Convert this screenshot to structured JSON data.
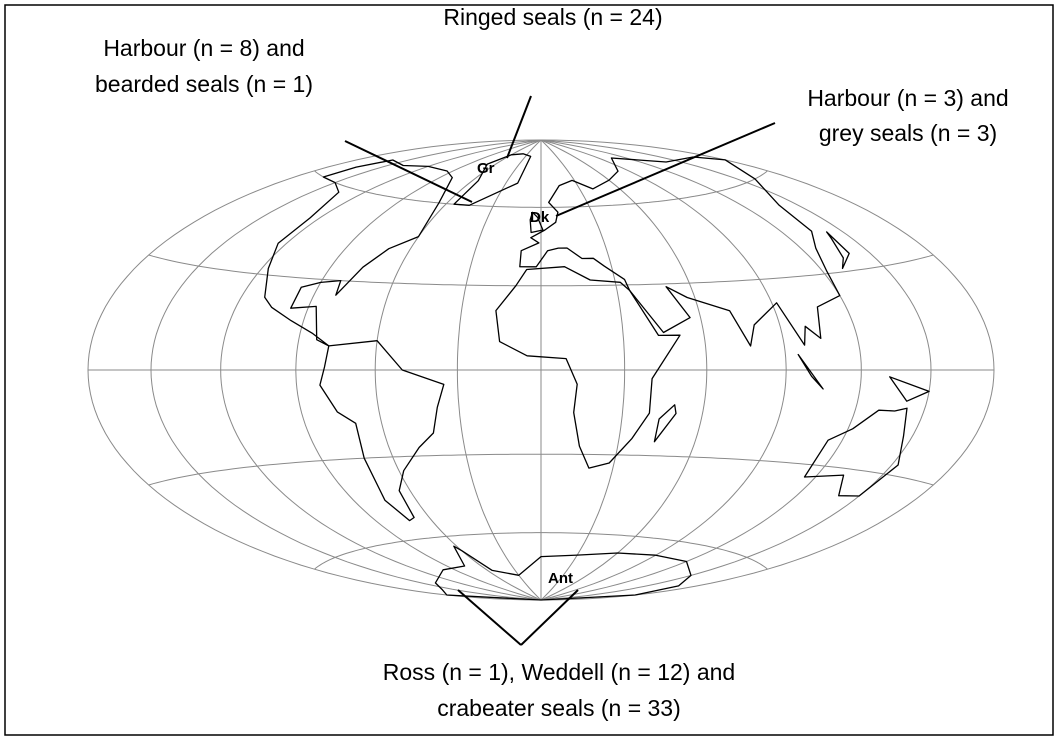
{
  "annotations": [
    {
      "lines": [
        "Harbour (n = 8) and",
        "bearded seals (n = 1)"
      ]
    },
    {
      "lines": [
        "Ringed seals (n = 24)"
      ]
    },
    {
      "lines": [
        "Harbour (n = 3) and",
        "grey seals (n = 3)"
      ]
    },
    {
      "lines": [
        "Ross (n = 1), Weddell (n = 12) and",
        "crabeater seals (n = 33)"
      ]
    }
  ],
  "labels": [
    "Gr",
    "Dk",
    "Ant"
  ]
}
